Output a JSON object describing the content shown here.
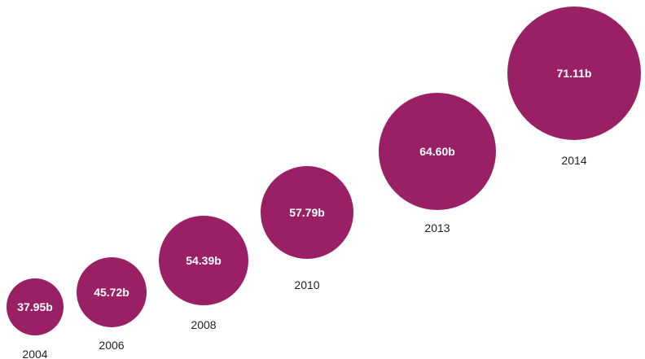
{
  "chart_data": {
    "type": "bubble",
    "title": "",
    "xlabel": "",
    "ylabel": "",
    "categories": [
      "2004",
      "2006",
      "2008",
      "2010",
      "2013",
      "2014"
    ],
    "values": [
      37.95,
      45.72,
      54.39,
      57.79,
      64.6,
      71.11
    ],
    "value_labels": [
      "37.95b",
      "45.72b",
      "54.39b",
      "57.79b",
      "64.60b",
      "71.11b"
    ],
    "unit": "billion",
    "grid": false,
    "legend": "none"
  },
  "colors": {
    "bubble": "#9a2066",
    "label_text": "#ffffff",
    "year_text": "#231f20"
  }
}
